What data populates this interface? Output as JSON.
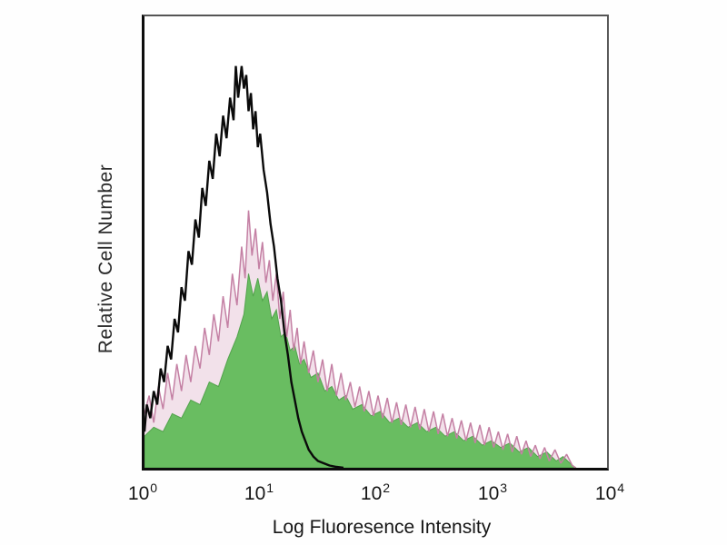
{
  "chart_data": {
    "type": "area",
    "subtype": "flow-cytometry-overlay-histogram",
    "title": "",
    "xlabel": "Log Fluoresence Intensity",
    "ylabel": "Relative Cell Number",
    "x_scale": "log",
    "x_decades": 4,
    "xlim": [
      1,
      10000
    ],
    "grid": false,
    "legend": "none",
    "x_ticks": [
      {
        "base": "10",
        "exp": "0"
      },
      {
        "base": "10",
        "exp": "1"
      },
      {
        "base": "10",
        "exp": "2"
      },
      {
        "base": "10",
        "exp": "3"
      },
      {
        "base": "10",
        "exp": "4"
      }
    ],
    "colors": {
      "stained_fill_green": "#69bd61",
      "stained_outline_pink": "#c480a4",
      "control_line_black": "#0a0a0a",
      "plot_border_dark": "#555555",
      "background": "#ffffff"
    },
    "series": [
      {
        "name": "stained-sample-haze",
        "style": "area",
        "fill": "#d9a8c4",
        "fill_opacity": 0.35,
        "points": [
          [
            0.0,
            12
          ],
          [
            0.04,
            16
          ],
          [
            0.08,
            10
          ],
          [
            0.12,
            18
          ],
          [
            0.16,
            13
          ],
          [
            0.2,
            21
          ],
          [
            0.24,
            15
          ],
          [
            0.28,
            23
          ],
          [
            0.32,
            17
          ],
          [
            0.36,
            25
          ],
          [
            0.4,
            19
          ],
          [
            0.44,
            27
          ],
          [
            0.48,
            22
          ],
          [
            0.52,
            31
          ],
          [
            0.56,
            25
          ],
          [
            0.6,
            34
          ],
          [
            0.64,
            28
          ],
          [
            0.68,
            38
          ],
          [
            0.72,
            31
          ],
          [
            0.76,
            43
          ],
          [
            0.8,
            36
          ],
          [
            0.84,
            49
          ],
          [
            0.87,
            42
          ],
          [
            0.9,
            57
          ],
          [
            0.93,
            47
          ],
          [
            0.96,
            53
          ],
          [
            0.99,
            44
          ],
          [
            1.02,
            50
          ],
          [
            1.05,
            41
          ],
          [
            1.08,
            46
          ],
          [
            1.11,
            37
          ],
          [
            1.14,
            43
          ],
          [
            1.17,
            33
          ],
          [
            1.2,
            39
          ],
          [
            1.23,
            29
          ],
          [
            1.26,
            35
          ],
          [
            1.29,
            26
          ],
          [
            1.32,
            31
          ],
          [
            1.35,
            23
          ],
          [
            1.38,
            28
          ],
          [
            1.42,
            21
          ],
          [
            1.46,
            26
          ],
          [
            1.5,
            19
          ],
          [
            1.54,
            24
          ],
          [
            1.58,
            17
          ],
          [
            1.62,
            23
          ],
          [
            1.66,
            16
          ],
          [
            1.7,
            21
          ],
          [
            1.74,
            15
          ],
          [
            1.78,
            19
          ],
          [
            1.82,
            13.5
          ],
          [
            1.86,
            18
          ],
          [
            1.9,
            12.5
          ],
          [
            1.94,
            17
          ],
          [
            1.98,
            11.5
          ],
          [
            2.02,
            16
          ],
          [
            2.06,
            11
          ],
          [
            2.1,
            15.5
          ],
          [
            2.14,
            10
          ],
          [
            2.18,
            14.5
          ],
          [
            2.22,
            9.5
          ],
          [
            2.26,
            14
          ],
          [
            2.3,
            9
          ],
          [
            2.34,
            13.5
          ],
          [
            2.38,
            8.5
          ],
          [
            2.42,
            13
          ],
          [
            2.46,
            8
          ],
          [
            2.5,
            12.5
          ],
          [
            2.54,
            7.5
          ],
          [
            2.58,
            12
          ],
          [
            2.62,
            7
          ],
          [
            2.66,
            11
          ],
          [
            2.7,
            6.5
          ],
          [
            2.74,
            10.5
          ],
          [
            2.78,
            6
          ],
          [
            2.82,
            10
          ],
          [
            2.86,
            5.5
          ],
          [
            2.9,
            9.5
          ],
          [
            2.94,
            5
          ],
          [
            2.98,
            9
          ],
          [
            3.02,
            4.5
          ],
          [
            3.06,
            8
          ],
          [
            3.1,
            4
          ],
          [
            3.14,
            7.5
          ],
          [
            3.18,
            3.5
          ],
          [
            3.22,
            7
          ],
          [
            3.26,
            3
          ],
          [
            3.3,
            6
          ],
          [
            3.34,
            2.5
          ],
          [
            3.38,
            5
          ],
          [
            3.42,
            2
          ],
          [
            3.46,
            4.5
          ],
          [
            3.5,
            1.5
          ],
          [
            3.55,
            4
          ],
          [
            3.6,
            1
          ],
          [
            3.65,
            3
          ],
          [
            3.7,
            0.5
          ],
          [
            3.73,
            0
          ]
        ]
      },
      {
        "name": "stained-sample-fill",
        "style": "area",
        "fill": "#69bd61",
        "fill_opacity": 1,
        "stroke": "#53a24d",
        "stroke_width": 1,
        "points": [
          [
            0.0,
            7
          ],
          [
            0.08,
            9
          ],
          [
            0.16,
            8
          ],
          [
            0.24,
            12
          ],
          [
            0.32,
            11
          ],
          [
            0.4,
            15
          ],
          [
            0.48,
            14
          ],
          [
            0.56,
            19
          ],
          [
            0.64,
            18
          ],
          [
            0.72,
            24
          ],
          [
            0.8,
            29
          ],
          [
            0.86,
            34
          ],
          [
            0.9,
            43
          ],
          [
            0.94,
            38
          ],
          [
            0.98,
            42
          ],
          [
            1.02,
            37
          ],
          [
            1.06,
            39
          ],
          [
            1.1,
            33
          ],
          [
            1.14,
            35
          ],
          [
            1.18,
            29
          ],
          [
            1.22,
            30
          ],
          [
            1.26,
            26
          ],
          [
            1.3,
            27
          ],
          [
            1.34,
            23
          ],
          [
            1.38,
            24
          ],
          [
            1.44,
            20
          ],
          [
            1.5,
            21
          ],
          [
            1.56,
            17
          ],
          [
            1.62,
            18
          ],
          [
            1.68,
            15
          ],
          [
            1.74,
            16
          ],
          [
            1.8,
            13
          ],
          [
            1.88,
            14
          ],
          [
            1.96,
            11.5
          ],
          [
            2.04,
            12.5
          ],
          [
            2.12,
            10
          ],
          [
            2.2,
            11
          ],
          [
            2.28,
            9
          ],
          [
            2.36,
            10
          ],
          [
            2.44,
            8
          ],
          [
            2.52,
            9
          ],
          [
            2.6,
            7
          ],
          [
            2.68,
            8
          ],
          [
            2.76,
            6
          ],
          [
            2.84,
            7
          ],
          [
            2.92,
            5
          ],
          [
            3.0,
            6
          ],
          [
            3.08,
            4.5
          ],
          [
            3.16,
            5.5
          ],
          [
            3.24,
            3.5
          ],
          [
            3.32,
            4.5
          ],
          [
            3.4,
            2.5
          ],
          [
            3.48,
            3.5
          ],
          [
            3.56,
            1.5
          ],
          [
            3.62,
            2.5
          ],
          [
            3.68,
            1
          ],
          [
            3.73,
            0
          ]
        ]
      },
      {
        "name": "stained-sample-outline",
        "style": "line",
        "stroke": "#c480a4",
        "stroke_width": 1.5,
        "points_ref": 0
      },
      {
        "name": "unstained-control-outline",
        "style": "line",
        "stroke": "#0a0a0a",
        "stroke_width": 2.4,
        "points": [
          [
            0.0,
            8
          ],
          [
            0.02,
            14
          ],
          [
            0.05,
            11
          ],
          [
            0.08,
            17
          ],
          [
            0.11,
            14
          ],
          [
            0.14,
            22
          ],
          [
            0.17,
            19
          ],
          [
            0.2,
            27
          ],
          [
            0.23,
            24
          ],
          [
            0.26,
            33
          ],
          [
            0.29,
            30
          ],
          [
            0.32,
            40
          ],
          [
            0.35,
            37
          ],
          [
            0.38,
            48
          ],
          [
            0.41,
            45
          ],
          [
            0.44,
            55
          ],
          [
            0.47,
            51
          ],
          [
            0.5,
            62
          ],
          [
            0.53,
            58
          ],
          [
            0.56,
            68
          ],
          [
            0.59,
            64
          ],
          [
            0.62,
            74
          ],
          [
            0.65,
            69
          ],
          [
            0.68,
            78
          ],
          [
            0.71,
            73
          ],
          [
            0.74,
            82
          ],
          [
            0.77,
            77
          ],
          [
            0.79,
            89
          ],
          [
            0.81,
            82
          ],
          [
            0.84,
            89
          ],
          [
            0.86,
            84
          ],
          [
            0.88,
            87
          ],
          [
            0.9,
            79
          ],
          [
            0.92,
            83
          ],
          [
            0.94,
            75
          ],
          [
            0.96,
            79
          ],
          [
            0.98,
            71
          ],
          [
            1.0,
            74
          ],
          [
            1.03,
            66
          ],
          [
            1.06,
            61
          ],
          [
            1.09,
            54
          ],
          [
            1.12,
            49
          ],
          [
            1.15,
            42
          ],
          [
            1.18,
            37
          ],
          [
            1.21,
            30
          ],
          [
            1.24,
            25
          ],
          [
            1.27,
            19
          ],
          [
            1.3,
            15
          ],
          [
            1.33,
            11
          ],
          [
            1.36,
            8
          ],
          [
            1.39,
            6
          ],
          [
            1.42,
            4
          ],
          [
            1.46,
            2.5
          ],
          [
            1.5,
            1.5
          ],
          [
            1.55,
            1
          ],
          [
            1.6,
            0.5
          ],
          [
            1.66,
            0.2
          ],
          [
            1.72,
            0
          ]
        ]
      }
    ]
  }
}
